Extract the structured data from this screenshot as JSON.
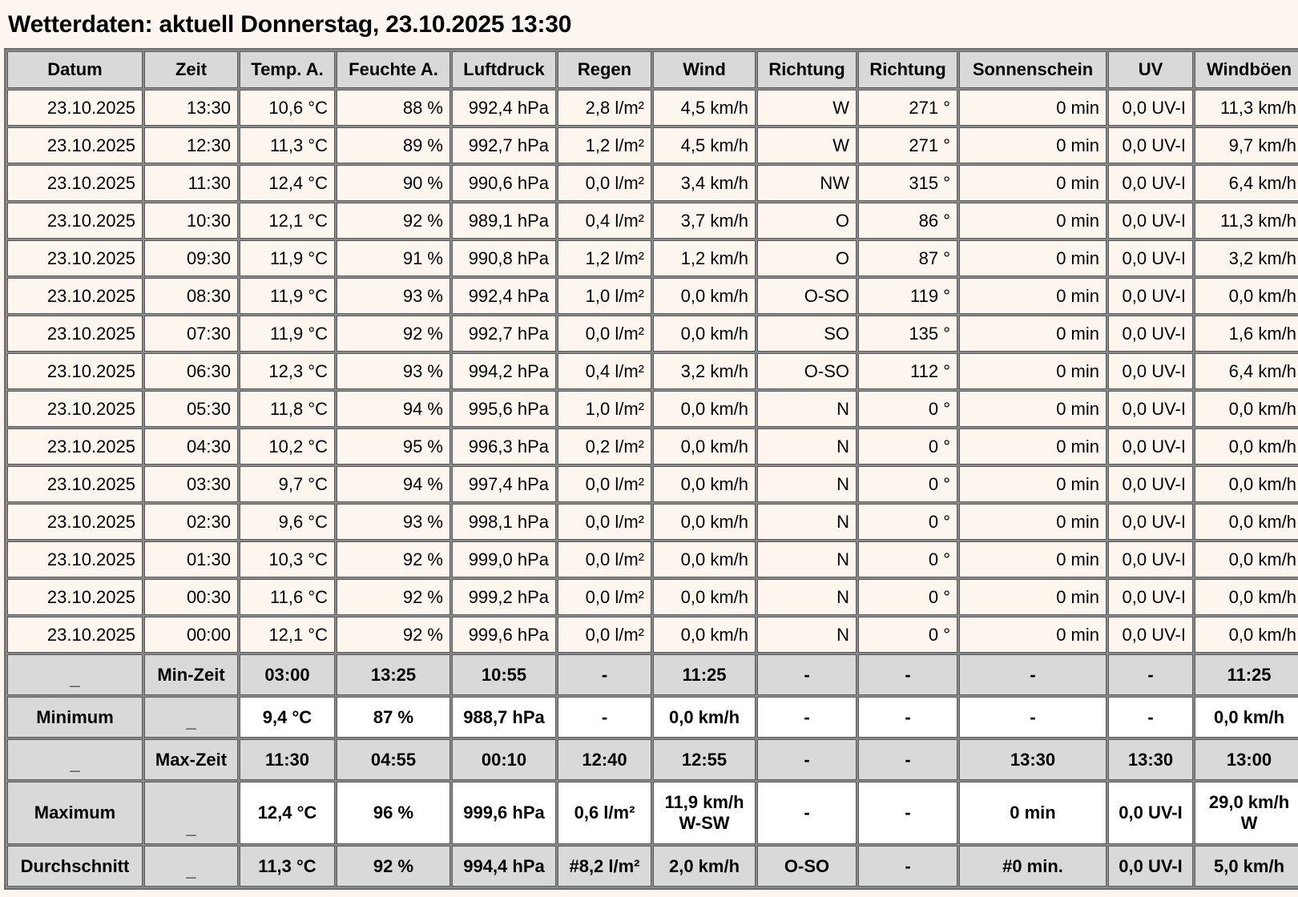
{
  "title": "Wetterdaten: aktuell Donnerstag, 23.10.2025 13:30",
  "columns": [
    "Datum",
    "Zeit",
    "Temp. A.",
    "Feuchte A.",
    "Luftdruck",
    "Regen",
    "Wind",
    "Richtung",
    "Richtung",
    "Sonnenschein",
    "UV",
    "Windböen"
  ],
  "rows": [
    [
      "23.10.2025",
      "13:30",
      "10,6 °C",
      "88 %",
      "992,4 hPa",
      "2,8 l/m²",
      "4,5 km/h",
      "W",
      "271 °",
      "0 min",
      "0,0 UV-I",
      "11,3 km/h"
    ],
    [
      "23.10.2025",
      "12:30",
      "11,3 °C",
      "89 %",
      "992,7 hPa",
      "1,2 l/m²",
      "4,5 km/h",
      "W",
      "271 °",
      "0 min",
      "0,0 UV-I",
      "9,7 km/h"
    ],
    [
      "23.10.2025",
      "11:30",
      "12,4 °C",
      "90 %",
      "990,6 hPa",
      "0,0 l/m²",
      "3,4 km/h",
      "NW",
      "315 °",
      "0 min",
      "0,0 UV-I",
      "6,4 km/h"
    ],
    [
      "23.10.2025",
      "10:30",
      "12,1 °C",
      "92 %",
      "989,1 hPa",
      "0,4 l/m²",
      "3,7 km/h",
      "O",
      "86 °",
      "0 min",
      "0,0 UV-I",
      "11,3 km/h"
    ],
    [
      "23.10.2025",
      "09:30",
      "11,9 °C",
      "91 %",
      "990,8 hPa",
      "1,2 l/m²",
      "1,2 km/h",
      "O",
      "87 °",
      "0 min",
      "0,0 UV-I",
      "3,2 km/h"
    ],
    [
      "23.10.2025",
      "08:30",
      "11,9 °C",
      "93 %",
      "992,4 hPa",
      "1,0 l/m²",
      "0,0 km/h",
      "O-SO",
      "119 °",
      "0 min",
      "0,0 UV-I",
      "0,0 km/h"
    ],
    [
      "23.10.2025",
      "07:30",
      "11,9 °C",
      "92 %",
      "992,7 hPa",
      "0,0 l/m²",
      "0,0 km/h",
      "SO",
      "135 °",
      "0 min",
      "0,0 UV-I",
      "1,6 km/h"
    ],
    [
      "23.10.2025",
      "06:30",
      "12,3 °C",
      "93 %",
      "994,2 hPa",
      "0,4 l/m²",
      "3,2 km/h",
      "O-SO",
      "112 °",
      "0 min",
      "0,0 UV-I",
      "6,4 km/h"
    ],
    [
      "23.10.2025",
      "05:30",
      "11,8 °C",
      "94 %",
      "995,6 hPa",
      "1,0 l/m²",
      "0,0 km/h",
      "N",
      "0 °",
      "0 min",
      "0,0 UV-I",
      "0,0 km/h"
    ],
    [
      "23.10.2025",
      "04:30",
      "10,2 °C",
      "95 %",
      "996,3 hPa",
      "0,2 l/m²",
      "0,0 km/h",
      "N",
      "0 °",
      "0 min",
      "0,0 UV-I",
      "0,0 km/h"
    ],
    [
      "23.10.2025",
      "03:30",
      "9,7 °C",
      "94 %",
      "997,4 hPa",
      "0,0 l/m²",
      "0,0 km/h",
      "N",
      "0 °",
      "0 min",
      "0,0 UV-I",
      "0,0 km/h"
    ],
    [
      "23.10.2025",
      "02:30",
      "9,6 °C",
      "93 %",
      "998,1 hPa",
      "0,0 l/m²",
      "0,0 km/h",
      "N",
      "0 °",
      "0 min",
      "0,0 UV-I",
      "0,0 km/h"
    ],
    [
      "23.10.2025",
      "01:30",
      "10,3 °C",
      "92 %",
      "999,0 hPa",
      "0,0 l/m²",
      "0,0 km/h",
      "N",
      "0 °",
      "0 min",
      "0,0 UV-I",
      "0,0 km/h"
    ],
    [
      "23.10.2025",
      "00:30",
      "11,6 °C",
      "92 %",
      "999,2 hPa",
      "0,0 l/m²",
      "0,0 km/h",
      "N",
      "0 °",
      "0 min",
      "0,0 UV-I",
      "0,0 km/h"
    ],
    [
      "23.10.2025",
      "00:00",
      "12,1 °C",
      "92 %",
      "999,6 hPa",
      "0,0 l/m²",
      "0,0 km/h",
      "N",
      "0 °",
      "0 min",
      "0,0 UV-I",
      "0,0 km/h"
    ]
  ],
  "summary": [
    {
      "name": "min-zeit",
      "style": "g",
      "cells": [
        "_",
        "Min-Zeit",
        "03:00",
        "13:25",
        "10:55",
        "-",
        "11:25",
        "-",
        "-",
        "-",
        "-",
        "11:25"
      ]
    },
    {
      "name": "minimum",
      "style": "w",
      "cells": [
        "Minimum",
        "_",
        "9,4 °C",
        "87 %",
        "988,7 hPa",
        "-",
        "0,0 km/h",
        "-",
        "-",
        "-",
        "-",
        "0,0 km/h"
      ]
    },
    {
      "name": "max-zeit",
      "style": "g",
      "cells": [
        "_",
        "Max-Zeit",
        "11:30",
        "04:55",
        "00:10",
        "12:40",
        "12:55",
        "-",
        "-",
        "13:30",
        "13:30",
        "13:00"
      ]
    },
    {
      "name": "maximum",
      "style": "w",
      "tall": true,
      "cells": [
        "Maximum",
        "_",
        "12,4 °C",
        "96 %",
        "999,6 hPa",
        "0,6 l/m²",
        "11,9 km/h\nW-SW",
        "-",
        "-",
        "0 min",
        "0,0 UV-I",
        "29,0 km/h\nW"
      ]
    },
    {
      "name": "durchschnitt",
      "style": "g",
      "cells": [
        "Durchschnitt",
        "_",
        "11,3 °C",
        "92 %",
        "994,4 hPa",
        "#8,2 l/m²",
        "2,0 km/h",
        "O-SO",
        "-",
        "#0 min.",
        "0,0 UV-I",
        "5,0 km/h"
      ]
    }
  ]
}
